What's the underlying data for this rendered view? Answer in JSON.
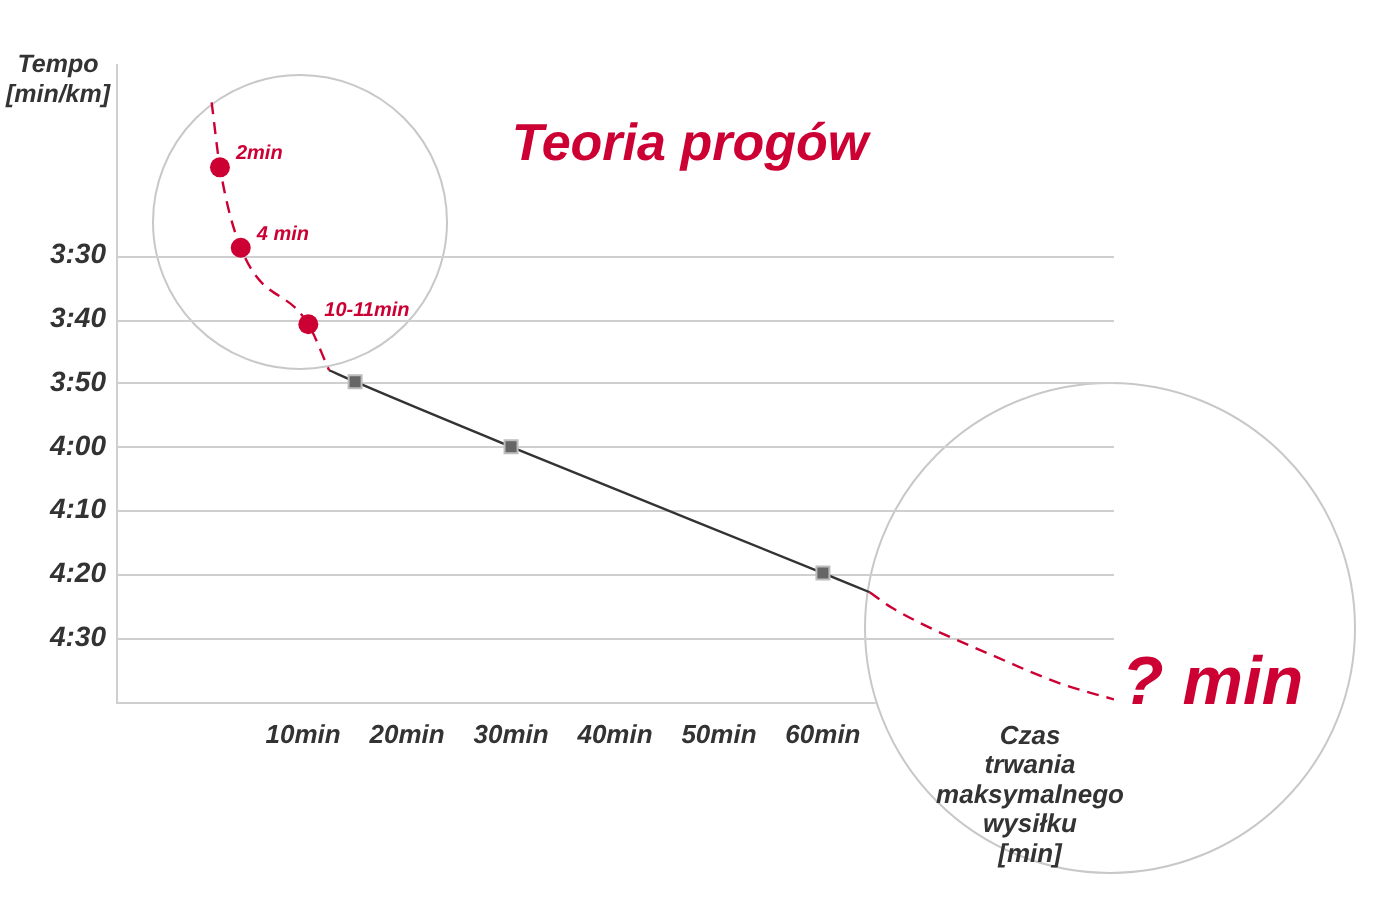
{
  "chart_data": {
    "type": "line",
    "title": "Teoria progów",
    "xlabel": "Czas trwania maksymalnego wysiłku [min]",
    "ylabel": "Tempo [min/km]",
    "annotations": [
      {
        "text": "2min",
        "x": 2,
        "y": 3.27
      },
      {
        "text": "4 min",
        "x": 4,
        "y": 3.48
      },
      {
        "text": "10-11min",
        "x": 10.5,
        "y": 3.68
      },
      "? min"
    ],
    "xlim": [
      -8,
      88
    ],
    "xticks": [
      {
        "value": 10,
        "label": "10min"
      },
      {
        "value": 20,
        "label": "20min"
      },
      {
        "value": 30,
        "label": "30min"
      },
      {
        "value": 40,
        "label": "40min"
      },
      {
        "value": 50,
        "label": "50min"
      },
      {
        "value": 60,
        "label": "60min"
      }
    ],
    "ylim": [
      4.6667,
      3
    ],
    "yticks": [
      {
        "value": 3.5,
        "label": "3:30"
      },
      {
        "value": 3.6667,
        "label": "3:40"
      },
      {
        "value": 3.8333,
        "label": "3:50"
      },
      {
        "value": 4,
        "label": "4:00"
      },
      {
        "value": 4.1667,
        "label": "4:10"
      },
      {
        "value": 4.3333,
        "label": "4:20"
      },
      {
        "value": 4.5,
        "label": "4:30"
      }
    ],
    "grid": "y",
    "series": [
      {
        "type": "line",
        "color": "#cc0033",
        "line_style": "dashed",
        "x": [
          1.2,
          2,
          4,
          10.5,
          12.5
        ],
        "values": [
          3.1,
          3.27,
          3.48,
          3.68,
          3.8
        ]
      },
      {
        "type": "line",
        "color": "#333333",
        "x": [
          12.5,
          15,
          30,
          60,
          64.5
        ],
        "values": [
          3.8,
          3.83,
          4,
          4.33,
          4.38
        ]
      },
      {
        "type": "line",
        "color": "#cc0033",
        "line_style": "dashed",
        "x": [
          64.5,
          66.6,
          77.6,
          83,
          88
        ],
        "values": [
          4.38,
          4.42,
          4.56,
          4.62,
          4.66
        ]
      },
      {
        "type": "scatter",
        "color": "#666666",
        "marker": "square",
        "x": [
          15,
          30,
          60
        ],
        "values": [
          3.83,
          4,
          4.33
        ]
      },
      {
        "type": "scatter",
        "color": "#cc0033",
        "marker": "circle",
        "x": [
          2,
          4,
          10.5
        ],
        "values": [
          3.27,
          3.48,
          3.68
        ]
      }
    ]
  }
}
